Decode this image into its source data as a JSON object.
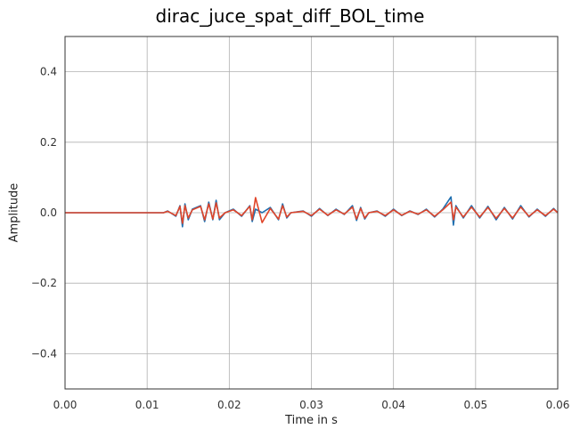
{
  "chart_data": {
    "type": "line",
    "title": "dirac_juce_spat_diff_BOL_time",
    "xlabel": "Time in s",
    "ylabel": "Amplitude",
    "xlim": [
      0.0,
      0.06
    ],
    "ylim": [
      -0.5,
      0.5
    ],
    "xticks": [
      0.0,
      0.01,
      0.02,
      0.03,
      0.04,
      0.05,
      0.06
    ],
    "xtick_labels": [
      "0.00",
      "0.01",
      "0.02",
      "0.03",
      "0.04",
      "0.05",
      "0.06"
    ],
    "yticks": [
      -0.4,
      -0.2,
      0.0,
      0.2,
      0.4
    ],
    "ytick_labels": [
      "−0.4",
      "−0.2",
      "0.0",
      "0.2",
      "0.4"
    ],
    "grid": true,
    "legend": "none",
    "series": [
      {
        "color": "#1f6fb0",
        "x": [
          0.0,
          0.012,
          0.0125,
          0.0135,
          0.014,
          0.0143,
          0.0146,
          0.015,
          0.0155,
          0.0165,
          0.017,
          0.0175,
          0.018,
          0.0184,
          0.0188,
          0.0195,
          0.0205,
          0.0215,
          0.0225,
          0.0228,
          0.0232,
          0.024,
          0.025,
          0.026,
          0.0265,
          0.027,
          0.0275,
          0.029,
          0.03,
          0.031,
          0.032,
          0.033,
          0.034,
          0.035,
          0.0355,
          0.036,
          0.0365,
          0.037,
          0.038,
          0.039,
          0.04,
          0.041,
          0.042,
          0.043,
          0.044,
          0.045,
          0.046,
          0.047,
          0.0473,
          0.0476,
          0.0485,
          0.0495,
          0.0505,
          0.0515,
          0.0525,
          0.0535,
          0.0545,
          0.0555,
          0.0565,
          0.0575,
          0.0585,
          0.0595,
          0.06
        ],
        "y": [
          0.0,
          0.0,
          0.005,
          -0.01,
          0.02,
          -0.04,
          0.025,
          -0.02,
          0.01,
          0.02,
          -0.025,
          0.03,
          -0.02,
          0.035,
          -0.02,
          0.0,
          0.01,
          -0.01,
          0.02,
          -0.025,
          0.01,
          0.0,
          0.015,
          -0.02,
          0.025,
          -0.015,
          0.0,
          0.005,
          -0.01,
          0.012,
          -0.008,
          0.01,
          -0.005,
          0.02,
          -0.022,
          0.015,
          -0.018,
          0.0,
          0.005,
          -0.01,
          0.01,
          -0.008,
          0.005,
          -0.005,
          0.01,
          -0.012,
          0.01,
          0.045,
          -0.035,
          0.02,
          -0.015,
          0.02,
          -0.015,
          0.018,
          -0.02,
          0.015,
          -0.018,
          0.02,
          -0.012,
          0.01,
          -0.01,
          0.012,
          0.0
        ]
      },
      {
        "color": "#e0452a",
        "x": [
          0.0,
          0.012,
          0.0125,
          0.0135,
          0.014,
          0.0143,
          0.0146,
          0.015,
          0.0155,
          0.0165,
          0.017,
          0.0175,
          0.018,
          0.0184,
          0.0188,
          0.0195,
          0.0205,
          0.0215,
          0.0225,
          0.0228,
          0.0232,
          0.024,
          0.025,
          0.026,
          0.0265,
          0.027,
          0.0275,
          0.029,
          0.03,
          0.031,
          0.032,
          0.033,
          0.034,
          0.035,
          0.0355,
          0.036,
          0.0365,
          0.037,
          0.038,
          0.039,
          0.04,
          0.041,
          0.042,
          0.043,
          0.044,
          0.045,
          0.046,
          0.047,
          0.0473,
          0.0476,
          0.0485,
          0.0495,
          0.0505,
          0.0515,
          0.0525,
          0.0535,
          0.0545,
          0.0555,
          0.0565,
          0.0575,
          0.0585,
          0.0595,
          0.06
        ],
        "y": [
          0.0,
          0.0,
          0.004,
          -0.008,
          0.018,
          -0.03,
          0.02,
          -0.015,
          0.008,
          0.018,
          -0.02,
          0.025,
          -0.018,
          0.028,
          -0.015,
          0.0,
          0.008,
          -0.008,
          0.018,
          -0.02,
          0.043,
          -0.028,
          0.012,
          -0.018,
          0.02,
          -0.012,
          0.0,
          0.004,
          -0.008,
          0.01,
          -0.007,
          0.008,
          -0.004,
          0.016,
          -0.018,
          0.012,
          -0.015,
          0.0,
          0.004,
          -0.008,
          0.008,
          -0.007,
          0.004,
          -0.004,
          0.008,
          -0.01,
          0.008,
          0.03,
          -0.02,
          0.016,
          -0.012,
          0.016,
          -0.012,
          0.015,
          -0.016,
          0.012,
          -0.015,
          0.016,
          -0.01,
          0.008,
          -0.008,
          0.01,
          0.0
        ]
      }
    ]
  }
}
